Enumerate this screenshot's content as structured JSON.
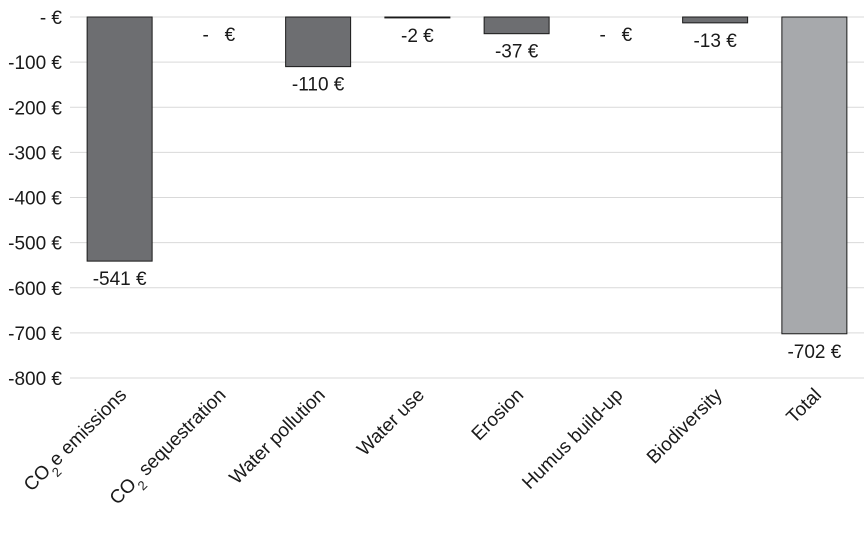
{
  "chart_data": {
    "type": "bar",
    "title": "",
    "xlabel": "",
    "ylabel": "",
    "ylim": [
      -800,
      0
    ],
    "grid": true,
    "y_ticks": [
      0,
      -100,
      -200,
      -300,
      -400,
      -500,
      -600,
      -700,
      -800
    ],
    "y_tick_labels": [
      "- €",
      "-100 €",
      "-200 €",
      "-300 €",
      "-400 €",
      "-500 €",
      "-600 €",
      "-700 €",
      "-800 €"
    ],
    "categories": [
      {
        "main": "CO",
        "sub": "2",
        "rest": "e emissions"
      },
      {
        "main": "CO",
        "sub": "2",
        "rest": " sequestration"
      },
      {
        "main": "Water pollution",
        "sub": "",
        "rest": ""
      },
      {
        "main": "Water use",
        "sub": "",
        "rest": ""
      },
      {
        "main": "Erosion",
        "sub": "",
        "rest": ""
      },
      {
        "main": "Humus build-up",
        "sub": "",
        "rest": ""
      },
      {
        "main": "Biodiversity",
        "sub": "",
        "rest": ""
      },
      {
        "main": "Total",
        "sub": "",
        "rest": ""
      }
    ],
    "values": [
      -541,
      0,
      -110,
      -2,
      -37,
      0,
      -13,
      -702
    ],
    "data_labels": [
      "-541 €",
      "-   €",
      "-110 €",
      "-2 €",
      "-37 €",
      "-   €",
      "-13 €",
      "-702 €"
    ],
    "bar_colors": [
      "#6d6e71",
      "#6d6e71",
      "#6d6e71",
      "#6d6e71",
      "#6d6e71",
      "#6d6e71",
      "#6d6e71",
      "#a7a9ac"
    ]
  }
}
